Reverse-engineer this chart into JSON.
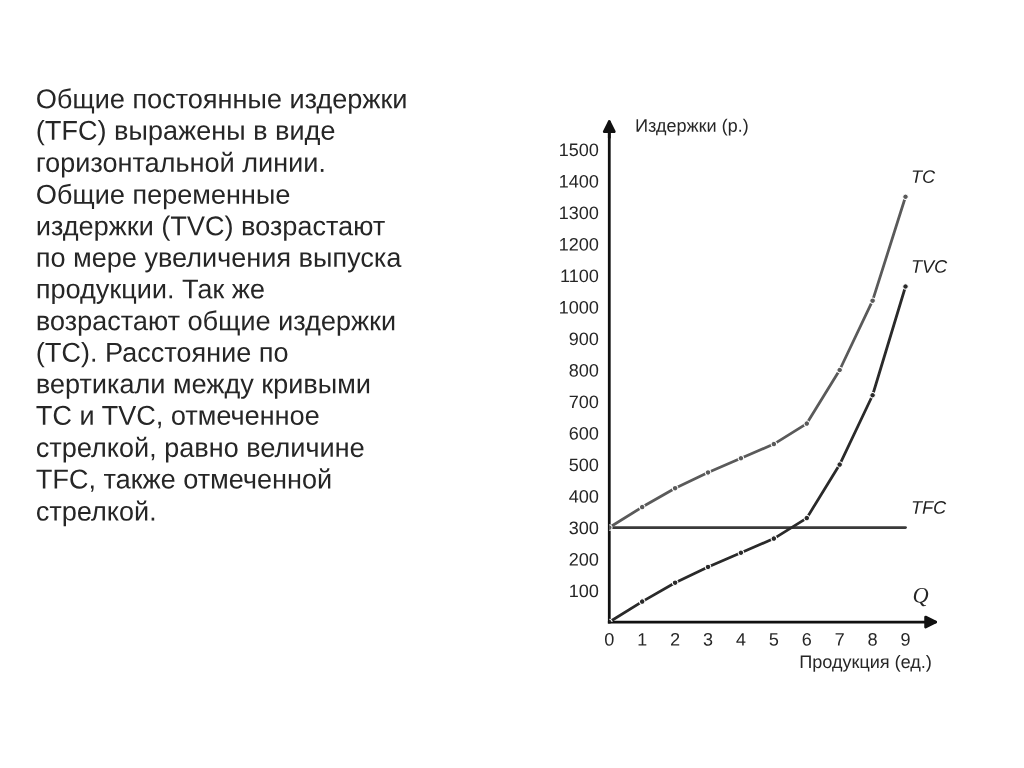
{
  "chart_data": {
    "type": "line",
    "x": [
      0,
      1,
      2,
      3,
      4,
      5,
      6,
      7,
      8,
      9
    ],
    "series": [
      {
        "name": "TC",
        "color": "#5a5a5a",
        "values": [
          300,
          365,
          425,
          475,
          520,
          565,
          630,
          800,
          1020,
          1350
        ]
      },
      {
        "name": "TVC",
        "color": "#2a2a2a",
        "values": [
          0,
          65,
          125,
          175,
          220,
          265,
          330,
          500,
          720,
          1065
        ]
      },
      {
        "name": "TFC",
        "color": "#3a3a3a",
        "marker": "none",
        "values": [
          300,
          300,
          300,
          300,
          300,
          300,
          300,
          300,
          300,
          300
        ]
      }
    ],
    "xlabel": "Продукция (ед.)",
    "ylabel": "Издержки (р.)",
    "annotations": [
      "Q",
      "Общие постоянные издержки\n(TFC) выражены в виде\nгоризонтальной линии.\nОбщие переменные\nиздержки (TVC) возрастают\nпо мере увеличения выпуска\nпродукции. Так же\nвозрастают общие издержки\n(TC). Расстояние по\nвертикали между кривыми\nTC и TVC, отмеченное\nстрелкой, равно величине\nTFC, также отмеченной\nстрелкой."
    ],
    "xlim": [
      0,
      9.8
    ],
    "ylim": [
      0,
      1560
    ],
    "xticks": [
      0,
      1,
      2,
      3,
      4,
      5,
      6,
      7,
      8,
      9
    ],
    "yticks": [
      100,
      200,
      300,
      400,
      500,
      600,
      700,
      800,
      900,
      1000,
      1100,
      1200,
      1300,
      1400,
      1500
    ],
    "marker": "circle",
    "line_style": "solid",
    "grid": false,
    "legend": false
  }
}
